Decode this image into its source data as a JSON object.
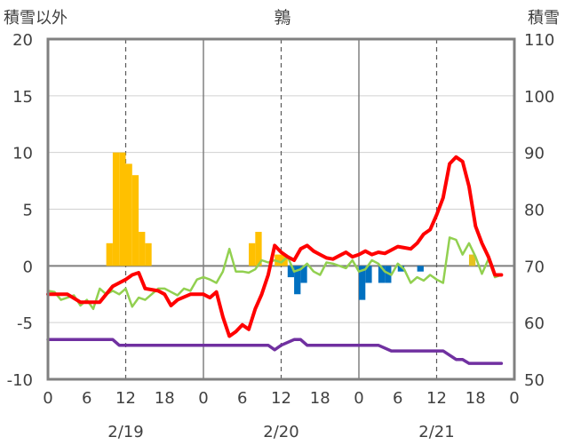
{
  "chart_data": {
    "type": "bar+line",
    "title": "鶉",
    "ylabel_left": "積雪以外",
    "ylabel_right": "積雪",
    "ylim_left": [
      -10,
      20
    ],
    "ylim_right": [
      50,
      110
    ],
    "yticks_left": [
      "20",
      "15",
      "10",
      "5",
      "0",
      "-5",
      "-10"
    ],
    "yticks_right": [
      "110",
      "100",
      "90",
      "80",
      "70",
      "60",
      "50"
    ],
    "xlim_hours": [
      0,
      72
    ],
    "xtick_labels": [
      "0",
      "6",
      "12",
      "18",
      "0",
      "6",
      "12",
      "18",
      "0",
      "6",
      "12",
      "18",
      "0"
    ],
    "date_labels": [
      "2/19",
      "2/20",
      "2/21"
    ],
    "colors": {
      "snowfall_bar": "#FFC000",
      "snowfall_small": "#E6C21E",
      "negative_bar": "#0070C0",
      "red_line": "#FF0000",
      "green_line": "#92D050",
      "purple_line": "#7030A0",
      "frame": "#808080",
      "grid_dash": "#595959"
    },
    "bars_orange": [
      {
        "x": 9,
        "y": 2
      },
      {
        "x": 10,
        "y": 10
      },
      {
        "x": 11,
        "y": 10
      },
      {
        "x": 12,
        "y": 9
      },
      {
        "x": 13,
        "y": 8
      },
      {
        "x": 14,
        "y": 3
      },
      {
        "x": 15,
        "y": 2
      },
      {
        "x": 31,
        "y": 2
      },
      {
        "x": 32,
        "y": 3
      },
      {
        "x": 35,
        "y": 1
      },
      {
        "x": 36,
        "y": 1
      },
      {
        "x": 65,
        "y": 1
      }
    ],
    "bars_blue": [
      {
        "x": 37,
        "y": -1
      },
      {
        "x": 38,
        "y": -2.5
      },
      {
        "x": 39,
        "y": -1.5
      },
      {
        "x": 48,
        "y": -3
      },
      {
        "x": 49,
        "y": -1.5
      },
      {
        "x": 51,
        "y": -1.5
      },
      {
        "x": 52,
        "y": -1.5
      },
      {
        "x": 54,
        "y": -0.5
      },
      {
        "x": 57,
        "y": -0.5
      }
    ],
    "red_line": [
      {
        "x": 0,
        "y": -2.5
      },
      {
        "x": 3,
        "y": -2.5
      },
      {
        "x": 5,
        "y": -3.2
      },
      {
        "x": 8,
        "y": -3.2
      },
      {
        "x": 10,
        "y": -1.8
      },
      {
        "x": 11,
        "y": -1.5
      },
      {
        "x": 12,
        "y": -1.2
      },
      {
        "x": 13,
        "y": -0.8
      },
      {
        "x": 14,
        "y": -0.6
      },
      {
        "x": 15,
        "y": -2.0
      },
      {
        "x": 17,
        "y": -2.2
      },
      {
        "x": 18,
        "y": -2.5
      },
      {
        "x": 19,
        "y": -3.5
      },
      {
        "x": 20,
        "y": -3.0
      },
      {
        "x": 22,
        "y": -2.5
      },
      {
        "x": 24,
        "y": -2.5
      },
      {
        "x": 25,
        "y": -2.8
      },
      {
        "x": 26,
        "y": -2.3
      },
      {
        "x": 27,
        "y": -4.5
      },
      {
        "x": 28,
        "y": -6.2
      },
      {
        "x": 29,
        "y": -5.8
      },
      {
        "x": 30,
        "y": -5.2
      },
      {
        "x": 31,
        "y": -5.6
      },
      {
        "x": 32,
        "y": -3.8
      },
      {
        "x": 33,
        "y": -2.5
      },
      {
        "x": 34,
        "y": -0.8
      },
      {
        "x": 35,
        "y": 1.8
      },
      {
        "x": 36,
        "y": 1.2
      },
      {
        "x": 37,
        "y": 0.8
      },
      {
        "x": 38,
        "y": 0.5
      },
      {
        "x": 39,
        "y": 1.5
      },
      {
        "x": 40,
        "y": 1.8
      },
      {
        "x": 41,
        "y": 1.3
      },
      {
        "x": 42,
        "y": 1.0
      },
      {
        "x": 43,
        "y": 0.7
      },
      {
        "x": 44,
        "y": 0.6
      },
      {
        "x": 45,
        "y": 0.9
      },
      {
        "x": 46,
        "y": 1.2
      },
      {
        "x": 47,
        "y": 0.8
      },
      {
        "x": 48,
        "y": 1.0
      },
      {
        "x": 49,
        "y": 1.3
      },
      {
        "x": 50,
        "y": 1.0
      },
      {
        "x": 51,
        "y": 1.2
      },
      {
        "x": 52,
        "y": 1.1
      },
      {
        "x": 53,
        "y": 1.4
      },
      {
        "x": 54,
        "y": 1.7
      },
      {
        "x": 55,
        "y": 1.6
      },
      {
        "x": 56,
        "y": 1.5
      },
      {
        "x": 57,
        "y": 2.0
      },
      {
        "x": 58,
        "y": 2.8
      },
      {
        "x": 59,
        "y": 3.2
      },
      {
        "x": 60,
        "y": 4.5
      },
      {
        "x": 61,
        "y": 6.0
      },
      {
        "x": 62,
        "y": 9.0
      },
      {
        "x": 63,
        "y": 9.6
      },
      {
        "x": 64,
        "y": 9.2
      },
      {
        "x": 65,
        "y": 7.0
      },
      {
        "x": 66,
        "y": 3.5
      },
      {
        "x": 67,
        "y": 2.0
      },
      {
        "x": 68,
        "y": 0.8
      },
      {
        "x": 69,
        "y": -0.8
      },
      {
        "x": 70,
        "y": -0.8
      }
    ],
    "green_line": [
      {
        "x": 0,
        "y": -2.2
      },
      {
        "x": 1,
        "y": -2.3
      },
      {
        "x": 2,
        "y": -3.0
      },
      {
        "x": 3,
        "y": -2.8
      },
      {
        "x": 4,
        "y": -2.6
      },
      {
        "x": 5,
        "y": -3.5
      },
      {
        "x": 6,
        "y": -3.0
      },
      {
        "x": 7,
        "y": -3.8
      },
      {
        "x": 8,
        "y": -2.0
      },
      {
        "x": 9,
        "y": -2.5
      },
      {
        "x": 10,
        "y": -2.2
      },
      {
        "x": 11,
        "y": -2.5
      },
      {
        "x": 12,
        "y": -2.0
      },
      {
        "x": 13,
        "y": -3.6
      },
      {
        "x": 14,
        "y": -2.8
      },
      {
        "x": 15,
        "y": -3.0
      },
      {
        "x": 16,
        "y": -2.5
      },
      {
        "x": 17,
        "y": -2.0
      },
      {
        "x": 18,
        "y": -2.0
      },
      {
        "x": 19,
        "y": -2.3
      },
      {
        "x": 20,
        "y": -2.6
      },
      {
        "x": 21,
        "y": -2.0
      },
      {
        "x": 22,
        "y": -2.2
      },
      {
        "x": 23,
        "y": -1.2
      },
      {
        "x": 24,
        "y": -1.0
      },
      {
        "x": 25,
        "y": -1.2
      },
      {
        "x": 26,
        "y": -1.5
      },
      {
        "x": 27,
        "y": -0.5
      },
      {
        "x": 28,
        "y": 1.5
      },
      {
        "x": 29,
        "y": -0.5
      },
      {
        "x": 30,
        "y": -0.5
      },
      {
        "x": 31,
        "y": -0.6
      },
      {
        "x": 32,
        "y": -0.3
      },
      {
        "x": 33,
        "y": 0.5
      },
      {
        "x": 34,
        "y": 0.3
      },
      {
        "x": 35,
        "y": 0.5
      },
      {
        "x": 36,
        "y": 0.3
      },
      {
        "x": 37,
        "y": 0.8
      },
      {
        "x": 38,
        "y": -0.5
      },
      {
        "x": 39,
        "y": -0.3
      },
      {
        "x": 40,
        "y": 0.2
      },
      {
        "x": 41,
        "y": -0.5
      },
      {
        "x": 42,
        "y": -0.8
      },
      {
        "x": 43,
        "y": 0.3
      },
      {
        "x": 44,
        "y": 0.2
      },
      {
        "x": 45,
        "y": 0.0
      },
      {
        "x": 46,
        "y": -0.2
      },
      {
        "x": 47,
        "y": 0.5
      },
      {
        "x": 48,
        "y": -0.5
      },
      {
        "x": 49,
        "y": -0.3
      },
      {
        "x": 50,
        "y": 0.5
      },
      {
        "x": 51,
        "y": 0.2
      },
      {
        "x": 52,
        "y": -0.5
      },
      {
        "x": 53,
        "y": -0.8
      },
      {
        "x": 54,
        "y": 0.2
      },
      {
        "x": 55,
        "y": -0.3
      },
      {
        "x": 56,
        "y": -1.5
      },
      {
        "x": 57,
        "y": -1.0
      },
      {
        "x": 58,
        "y": -1.3
      },
      {
        "x": 59,
        "y": -0.8
      },
      {
        "x": 60,
        "y": -1.2
      },
      {
        "x": 61,
        "y": -1.5
      },
      {
        "x": 62,
        "y": 2.5
      },
      {
        "x": 63,
        "y": 2.3
      },
      {
        "x": 64,
        "y": 1.0
      },
      {
        "x": 65,
        "y": 2.0
      },
      {
        "x": 66,
        "y": 0.8
      },
      {
        "x": 67,
        "y": -0.7
      },
      {
        "x": 68,
        "y": 0.6
      },
      {
        "x": 69,
        "y": -1.0
      },
      {
        "x": 70,
        "y": -0.8
      }
    ],
    "purple_line": [
      {
        "x": 0,
        "y": 57
      },
      {
        "x": 10,
        "y": 57
      },
      {
        "x": 11,
        "y": 56
      },
      {
        "x": 34,
        "y": 56
      },
      {
        "x": 35,
        "y": 55.2
      },
      {
        "x": 36,
        "y": 56
      },
      {
        "x": 38,
        "y": 57
      },
      {
        "x": 39,
        "y": 57
      },
      {
        "x": 40,
        "y": 56
      },
      {
        "x": 51,
        "y": 56
      },
      {
        "x": 53,
        "y": 55
      },
      {
        "x": 61,
        "y": 55
      },
      {
        "x": 63,
        "y": 53.5
      },
      {
        "x": 64,
        "y": 53.5
      },
      {
        "x": 65,
        "y": 52.8
      },
      {
        "x": 70,
        "y": 52.8
      }
    ]
  }
}
